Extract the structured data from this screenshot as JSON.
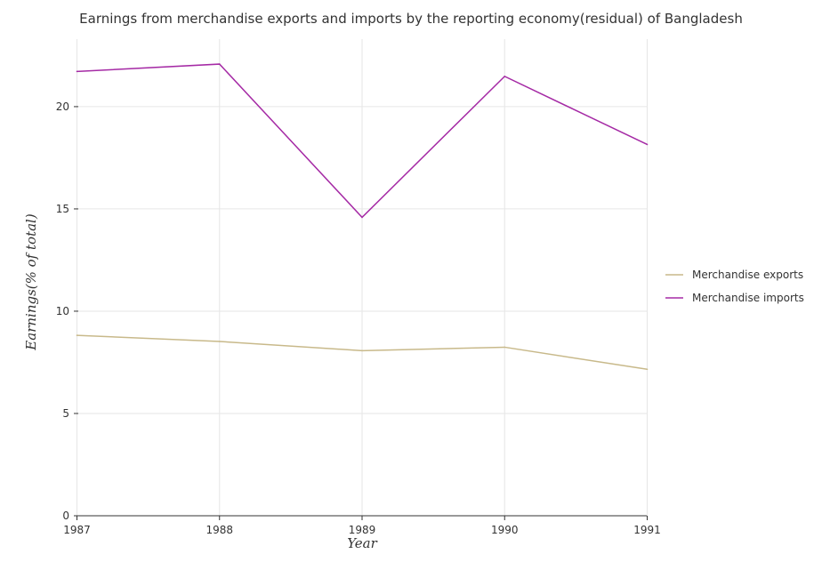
{
  "chart_data": {
    "type": "line",
    "title": "Earnings from merchandise exports and imports by the reporting economy(residual) of Bangladesh",
    "xlabel": "Year",
    "ylabel": "Earnings(% of total)",
    "categories": [
      "1987",
      "1988",
      "1989",
      "1990",
      "1991"
    ],
    "ylim": [
      0,
      23.3
    ],
    "yticks": [
      0,
      5,
      10,
      15,
      20
    ],
    "grid": true,
    "legend_position": "right",
    "series": [
      {
        "name": "Merchandise exports",
        "color": "#c8b98a",
        "values": [
          8.82,
          8.52,
          8.07,
          8.24,
          7.16
        ]
      },
      {
        "name": "Merchandise imports",
        "color": "#a52aa5",
        "values": [
          21.72,
          22.08,
          14.59,
          21.48,
          18.15
        ]
      }
    ]
  }
}
